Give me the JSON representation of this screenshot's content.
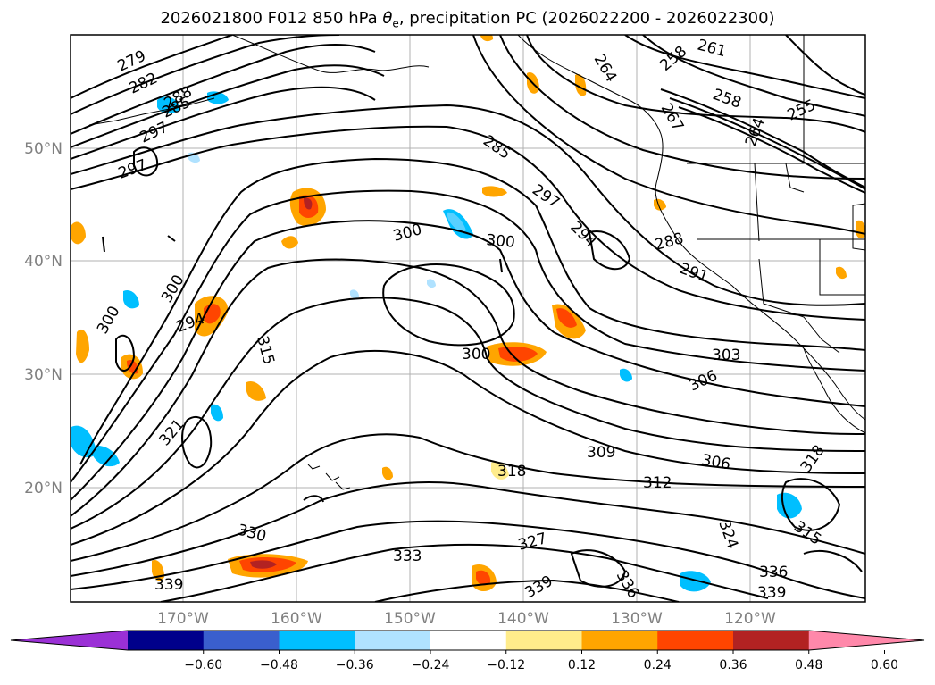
{
  "title_base": "2026021800 F012 850 hPa ",
  "title_symbol": "θ",
  "title_sub": "e",
  "title_rest": ", precipitation PC (2026022200 - 2026022300)",
  "lat_ticks": [
    "50°N",
    "40°N",
    "30°N",
    "20°N"
  ],
  "lon_ticks": [
    "170°W",
    "160°W",
    "150°W",
    "140°W",
    "130°W",
    "120°W"
  ],
  "colorbar": {
    "colors": [
      "#9b30d6",
      "#00008b",
      "#3a5fcd",
      "#00bfff",
      "#b0e2ff",
      "#ffffff",
      "#ffec8b",
      "#ffa500",
      "#ff4500",
      "#b22222",
      "#ff88aa"
    ],
    "labels": [
      "−0.60",
      "−0.48",
      "−0.36",
      "−0.24",
      "−0.12",
      "0.12",
      "0.24",
      "0.36",
      "0.48",
      "0.60"
    ]
  },
  "contour_labels": [
    "279",
    "282",
    "285",
    "288",
    "297",
    "297",
    "300",
    "300",
    "294",
    "285",
    "297",
    "294",
    "300",
    "300",
    "288",
    "291",
    "303",
    "306",
    "300",
    "315",
    "321",
    "309",
    "306",
    "312",
    "318",
    "318",
    "330",
    "333",
    "327",
    "324",
    "315",
    "339",
    "339",
    "336",
    "336",
    "339",
    "258",
    "261",
    "264",
    "258",
    "255",
    "267",
    "264"
  ]
}
